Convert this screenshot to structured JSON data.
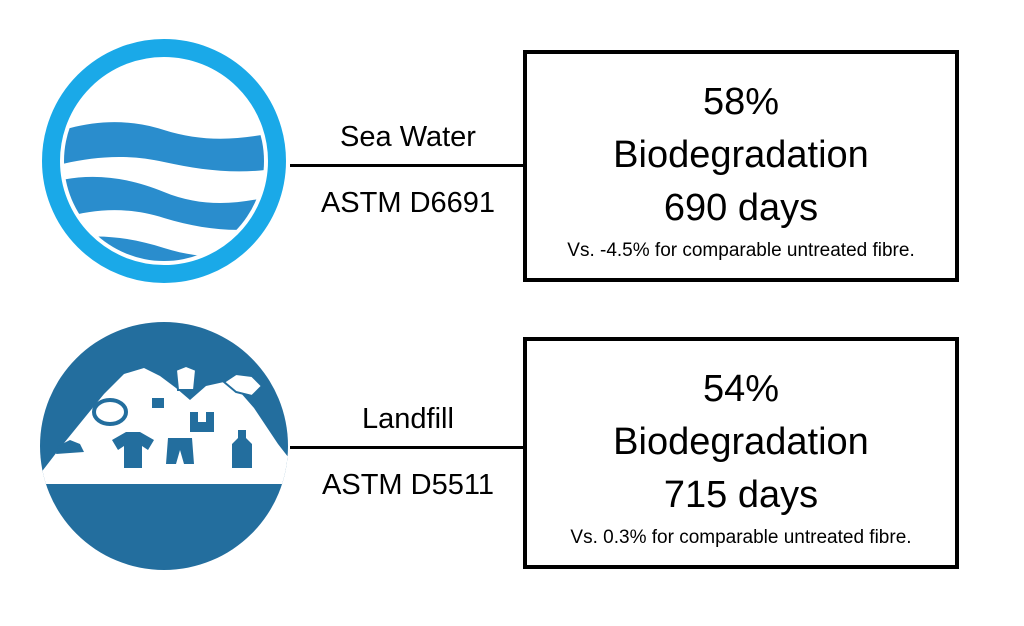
{
  "colors": {
    "sea_ring": "#1aa9e8",
    "sea_wave": "#2a8dcd",
    "landfill": "#236e9e",
    "background": "#ffffff",
    "line": "#000000"
  },
  "rows": [
    {
      "environment": "Sea Water",
      "standard": "ASTM D6691",
      "icon": "sea-water-icon",
      "result": {
        "percentage": "58%",
        "metric": "Biodegradation",
        "duration": "690 days",
        "comparison": "Vs. -4.5% for comparable untreated fibre."
      }
    },
    {
      "environment": "Landfill",
      "standard": "ASTM D5511",
      "icon": "landfill-icon",
      "result": {
        "percentage": "54%",
        "metric": "Biodegradation",
        "duration": "715 days",
        "comparison": "Vs. 0.3% for comparable untreated fibre."
      }
    }
  ]
}
